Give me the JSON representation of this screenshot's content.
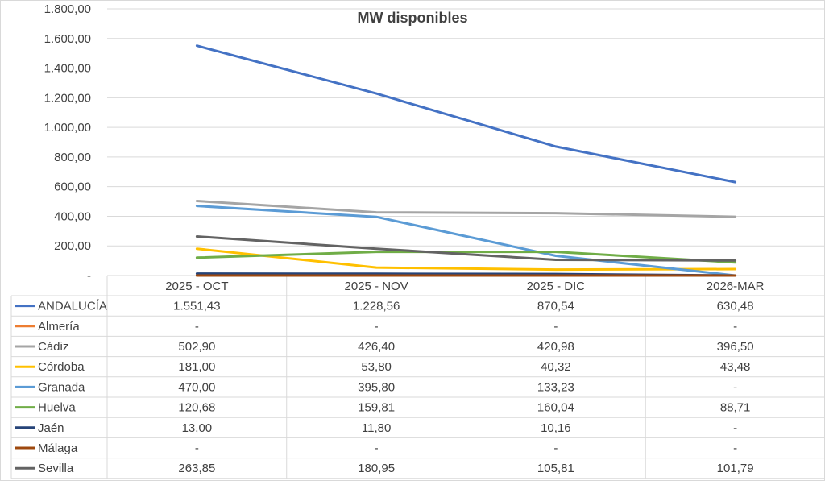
{
  "chart_data": {
    "type": "line",
    "title": "MW disponibles",
    "categories": [
      "2025 - OCT",
      "2025 - NOV",
      "2025 - DIC",
      "2026-MAR"
    ],
    "ylim": [
      0,
      1800
    ],
    "yticks": [
      {
        "value": 0,
        "label": "-"
      },
      {
        "value": 200,
        "label": "200,00"
      },
      {
        "value": 400,
        "label": "400,00"
      },
      {
        "value": 600,
        "label": "600,00"
      },
      {
        "value": 800,
        "label": "800,00"
      },
      {
        "value": 1000,
        "label": "1.000,00"
      },
      {
        "value": 1200,
        "label": "1.200,00"
      },
      {
        "value": 1400,
        "label": "1.400,00"
      },
      {
        "value": 1600,
        "label": "1.600,00"
      },
      {
        "value": 1800,
        "label": "1.800,00"
      }
    ],
    "grid": true,
    "legend": "data-table",
    "series": [
      {
        "name": "ANDALUCÍA",
        "color": "#4472c4",
        "values": [
          1551.43,
          1228.56,
          870.54,
          630.48
        ],
        "labels": [
          "1.551,43",
          "1.228,56",
          "870,54",
          "630,48"
        ]
      },
      {
        "name": "Almería",
        "color": "#ed7d31",
        "values": [
          0,
          0,
          0,
          0
        ],
        "labels": [
          "-",
          "-",
          "-",
          "-"
        ]
      },
      {
        "name": "Cádiz",
        "color": "#a5a5a5",
        "values": [
          502.9,
          426.4,
          420.98,
          396.5
        ],
        "labels": [
          "502,90",
          "426,40",
          "420,98",
          "396,50"
        ]
      },
      {
        "name": "Córdoba",
        "color": "#ffc000",
        "values": [
          181.0,
          53.8,
          40.32,
          43.48
        ],
        "labels": [
          "181,00",
          "53,80",
          "40,32",
          "43,48"
        ]
      },
      {
        "name": "Granada",
        "color": "#5b9bd5",
        "values": [
          470.0,
          395.8,
          133.23,
          0
        ],
        "labels": [
          "470,00",
          "395,80",
          "133,23",
          "-"
        ]
      },
      {
        "name": "Huelva",
        "color": "#70ad47",
        "values": [
          120.68,
          159.81,
          160.04,
          88.71
        ],
        "labels": [
          "120,68",
          "159,81",
          "160,04",
          "88,71"
        ]
      },
      {
        "name": "Jaén",
        "color": "#264478",
        "values": [
          13.0,
          11.8,
          10.16,
          0
        ],
        "labels": [
          "13,00",
          "11,80",
          "10,16",
          "-"
        ]
      },
      {
        "name": "Málaga",
        "color": "#9e480e",
        "values": [
          0,
          0,
          0,
          0
        ],
        "labels": [
          "-",
          "-",
          "-",
          "-"
        ]
      },
      {
        "name": "Sevilla",
        "color": "#636363",
        "values": [
          263.85,
          180.95,
          105.81,
          101.79
        ],
        "labels": [
          "263,85",
          "180,95",
          "105,81",
          "101,79"
        ]
      }
    ]
  }
}
